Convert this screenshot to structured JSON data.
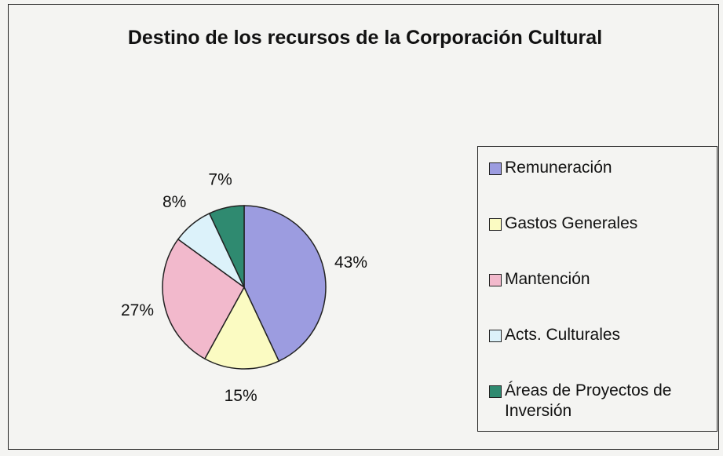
{
  "chart_data": {
    "type": "pie",
    "title": "Destino de los recursos de la Corporación Cultural",
    "categories": [
      "Remuneración",
      "Gastos Generales",
      "Mantención",
      "Acts. Culturales",
      "Áreas de Proyectos de Inversión"
    ],
    "values": [
      43,
      15,
      27,
      8,
      7
    ],
    "value_labels": [
      "43%",
      "15%",
      "27%",
      "8%",
      "7%"
    ],
    "colors": [
      "#9c9ce0",
      "#fbfbc2",
      "#f2b9cc",
      "#dcf2fa",
      "#2f8a70"
    ],
    "legend": "right"
  }
}
